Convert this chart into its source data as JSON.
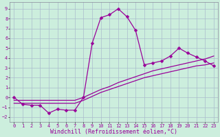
{
  "xlabel": "Windchill (Refroidissement éolien,°C)",
  "background_color": "#cceedd",
  "grid_color": "#aabbcc",
  "line_color": "#990099",
  "xlim": [
    -0.5,
    23.5
  ],
  "ylim": [
    -2.5,
    9.7
  ],
  "xticks": [
    0,
    1,
    2,
    3,
    4,
    5,
    6,
    7,
    8,
    9,
    10,
    11,
    12,
    13,
    14,
    15,
    16,
    17,
    18,
    19,
    20,
    21,
    22,
    23
  ],
  "yticks": [
    -2,
    -1,
    0,
    1,
    2,
    3,
    4,
    5,
    6,
    7,
    8,
    9
  ],
  "series1_x": [
    0,
    1,
    2,
    3,
    4,
    5,
    6,
    7,
    8,
    9,
    10,
    11,
    12,
    13,
    14,
    15,
    16,
    17,
    18,
    19,
    20,
    21,
    22,
    23
  ],
  "series1_y": [
    0,
    -0.7,
    -0.8,
    -0.8,
    -1.6,
    -1.2,
    -1.3,
    -1.3,
    0,
    5.5,
    8.1,
    8.4,
    9.0,
    8.2,
    6.8,
    3.3,
    3.5,
    3.7,
    4.2,
    5.0,
    4.5,
    4.1,
    3.7,
    3.2
  ],
  "series2_x": [
    0,
    1,
    2,
    3,
    4,
    5,
    6,
    7,
    8,
    9,
    10,
    11,
    12,
    13,
    14,
    15,
    16,
    17,
    18,
    19,
    20,
    21,
    22,
    23
  ],
  "series2_y": [
    -0.3,
    -0.3,
    -0.3,
    -0.3,
    -0.3,
    -0.3,
    -0.3,
    -0.3,
    0.0,
    0.4,
    0.8,
    1.1,
    1.5,
    1.8,
    2.1,
    2.4,
    2.7,
    2.9,
    3.1,
    3.3,
    3.5,
    3.7,
    3.9,
    4.2
  ],
  "series3_x": [
    0,
    1,
    2,
    3,
    4,
    5,
    6,
    7,
    8,
    9,
    10,
    11,
    12,
    13,
    14,
    15,
    16,
    17,
    18,
    19,
    20,
    21,
    22,
    23
  ],
  "series3_y": [
    -0.6,
    -0.6,
    -0.6,
    -0.6,
    -0.6,
    -0.6,
    -0.6,
    -0.6,
    -0.3,
    0.1,
    0.5,
    0.8,
    1.1,
    1.4,
    1.7,
    2.0,
    2.2,
    2.4,
    2.6,
    2.8,
    3.0,
    3.2,
    3.3,
    3.5
  ],
  "markersize": 2.5,
  "linewidth": 0.9,
  "tick_fontsize": 5.0,
  "label_fontsize": 6.0
}
